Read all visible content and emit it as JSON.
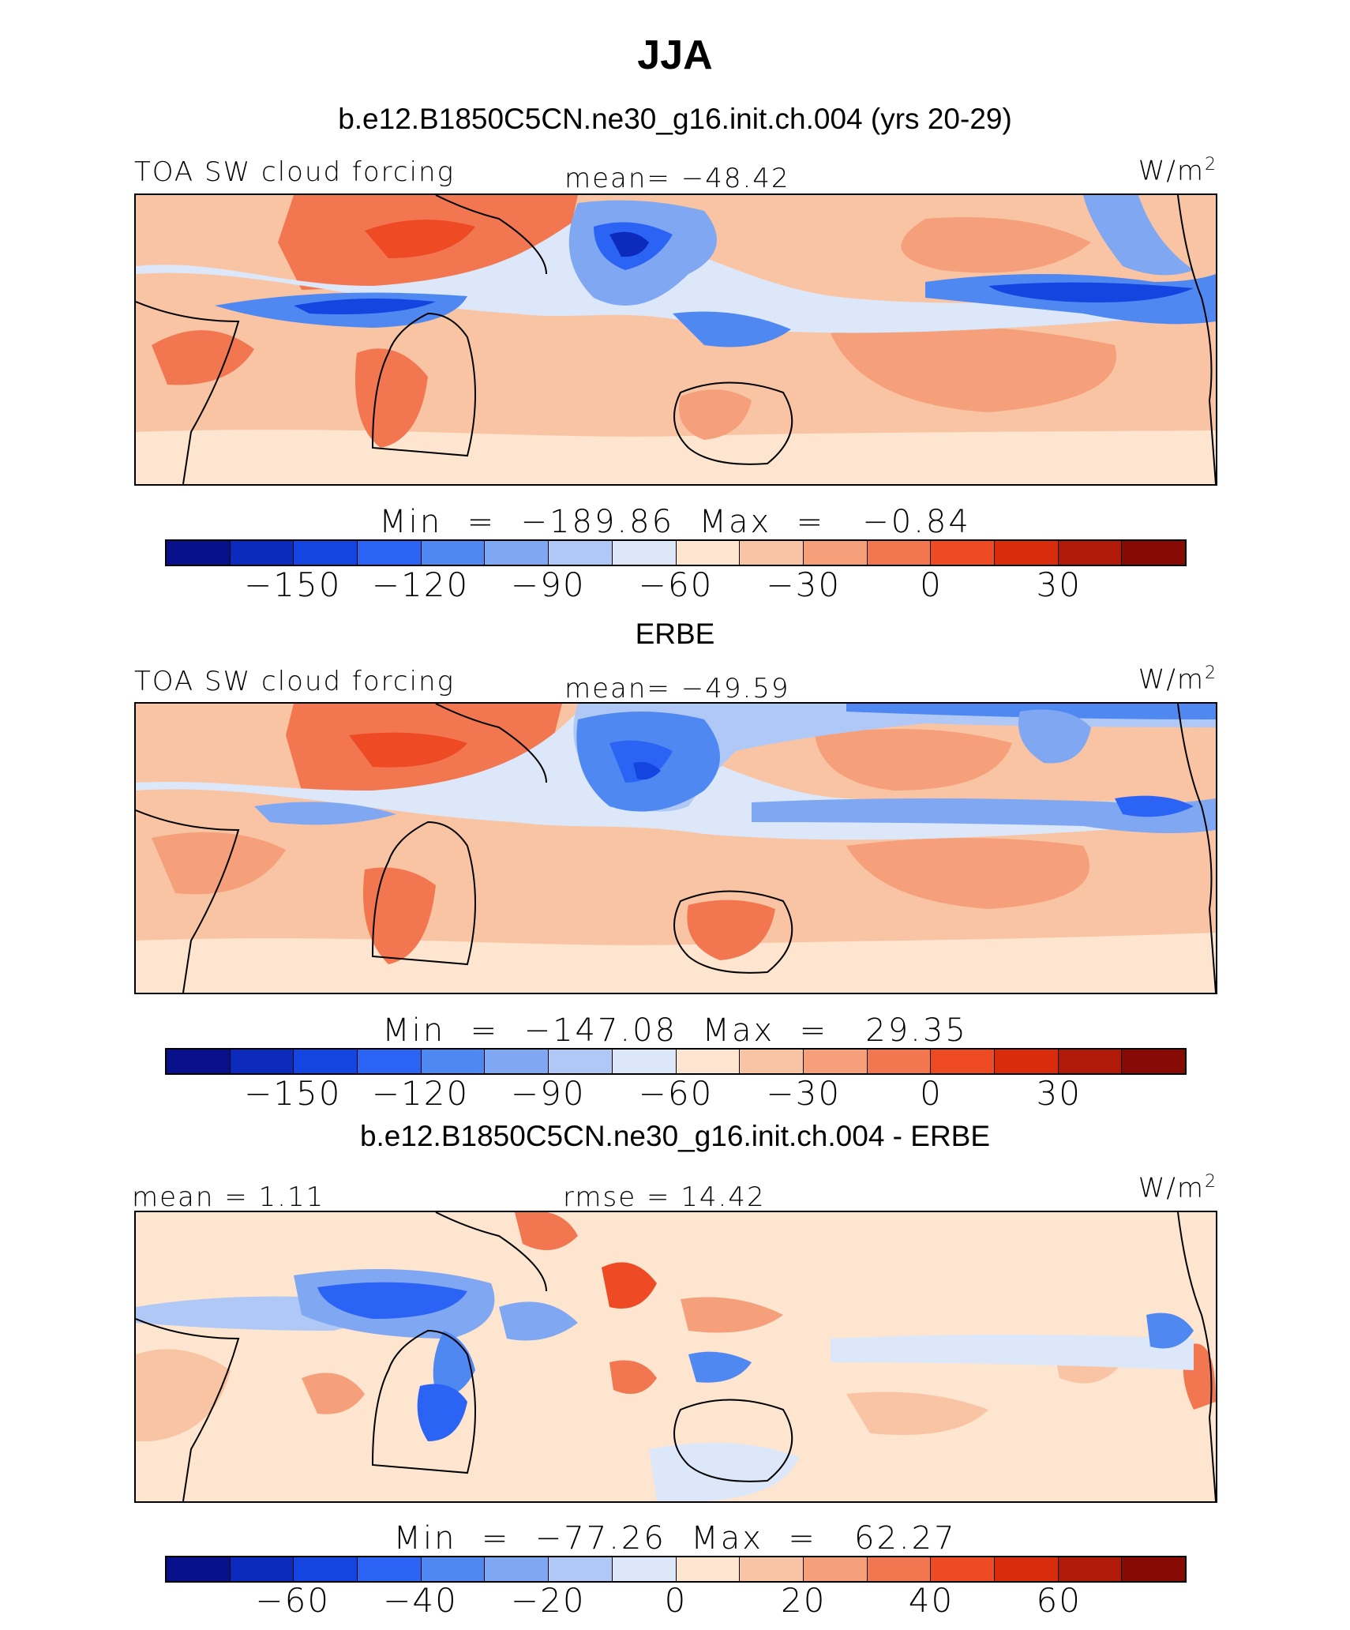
{
  "title": "JJA",
  "colors": [
    "#08108c",
    "#0c2bbd",
    "#1545e0",
    "#2b63f5",
    "#5088f2",
    "#80a8f2",
    "#b0c8f5",
    "#dce8fa",
    "#fde5cf",
    "#f9c4a4",
    "#f5a07a",
    "#f27650",
    "#ee4a24",
    "#d82c0c",
    "#b01a08",
    "#870a04"
  ],
  "panels": [
    {
      "subtitle": "b.e12.B1850C5CN.ne30_g16.init.ch.004 (yrs 20-29)",
      "left_label": "TOA SW cloud forcing",
      "center_label": "mean= −48.42",
      "units_base": "W/m",
      "units_exp": "2",
      "minmax": "Min  =  −189.86  Max  =   −0.84",
      "ticks": [
        "−150",
        "−120",
        "−90",
        "−60",
        "−30",
        "0",
        "30"
      ]
    },
    {
      "subtitle": "ERBE",
      "left_label": "TOA SW cloud forcing",
      "center_label": "mean= −49.59",
      "units_base": "W/m",
      "units_exp": "2",
      "minmax": "Min  =  −147.08  Max  =   29.35",
      "ticks": [
        "−150",
        "−120",
        "−90",
        "−60",
        "−30",
        "0",
        "30"
      ]
    },
    {
      "subtitle": "b.e12.B1850C5CN.ne30_g16.init.ch.004 - ERBE",
      "left_label": "mean =    1.11",
      "center_label": "rmse =   14.42",
      "units_base": "W/m",
      "units_exp": "2",
      "minmax": "Min  =  −77.26  Max  =   62.27",
      "ticks": [
        "−60",
        "−40",
        "−20",
        "0",
        "20",
        "40",
        "60"
      ]
    }
  ]
}
